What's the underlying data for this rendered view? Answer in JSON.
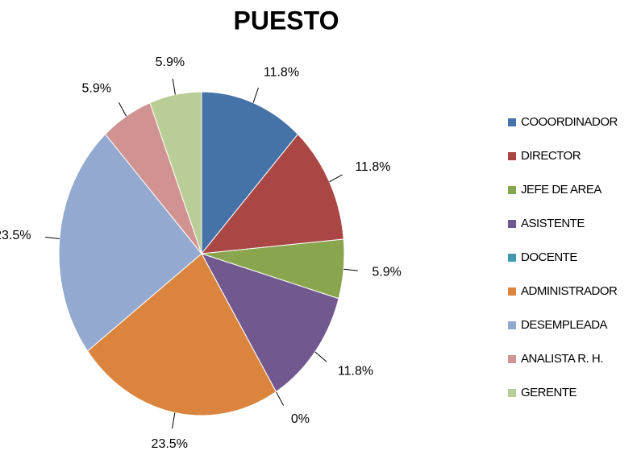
{
  "chart_data": {
    "type": "pie",
    "title": "PUESTO",
    "categories": [
      "COOORDINADOR",
      "DIRECTOR",
      "JEFE DE AREA",
      "ASISTENTE",
      "DOCENTE",
      "ADMINISTRADOR",
      "DESEMPLEADA",
      "ANALISTA R. H.",
      "GERENTE"
    ],
    "values": [
      11.8,
      11.8,
      5.9,
      11.8,
      0,
      23.5,
      23.5,
      5.9,
      5.9
    ],
    "value_labels": [
      "11.8%",
      "11.8%",
      "5.9%",
      "11.8%",
      "0%",
      "23.5%",
      "23.5%",
      "5.9%",
      "5.9%"
    ],
    "colors": [
      "#4572a7",
      "#aa4643",
      "#89a54e",
      "#71588f",
      "#4198af",
      "#db843d",
      "#93a9cf",
      "#d19392",
      "#b9cd96"
    ],
    "legend": "right"
  }
}
